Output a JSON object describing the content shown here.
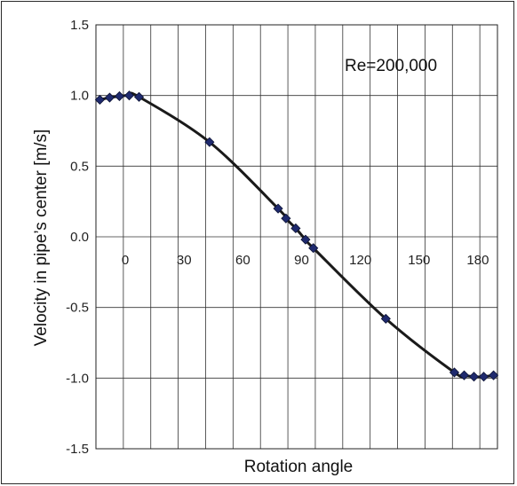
{
  "chart_data": {
    "type": "scatter",
    "title": "",
    "xlabel": "Rotation angle",
    "ylabel": "Velocity in pipe’s center [m/s]",
    "annotation": "Re=200,000",
    "xlim": [
      -15,
      190
    ],
    "ylim": [
      -1.5,
      1.5
    ],
    "xticks": [
      0,
      30,
      60,
      90,
      120,
      150,
      180
    ],
    "yticks": [
      1.5,
      1.0,
      0.5,
      0.0,
      -0.5,
      -1.0,
      -1.5
    ],
    "ytick_labels": [
      "1.5",
      "1.0",
      "0.5",
      "0.0",
      "-0.5",
      "-1.0",
      "-1.5"
    ],
    "x_gridlines": [
      -15,
      -1,
      13,
      27,
      41,
      55,
      69,
      83,
      97,
      111,
      125,
      139,
      153,
      167,
      181
    ],
    "grid": true,
    "points": [
      {
        "x": -13,
        "y": 0.97
      },
      {
        "x": -8,
        "y": 0.985
      },
      {
        "x": -3,
        "y": 0.995
      },
      {
        "x": 2,
        "y": 1.0
      },
      {
        "x": 7,
        "y": 0.99
      },
      {
        "x": 43,
        "y": 0.67
      },
      {
        "x": 78,
        "y": 0.2
      },
      {
        "x": 82,
        "y": 0.13
      },
      {
        "x": 87,
        "y": 0.06
      },
      {
        "x": 92,
        "y": -0.02
      },
      {
        "x": 96,
        "y": -0.08
      },
      {
        "x": 133,
        "y": -0.58
      },
      {
        "x": 168,
        "y": -0.96
      },
      {
        "x": 173,
        "y": -0.98
      },
      {
        "x": 178,
        "y": -0.99
      },
      {
        "x": 183,
        "y": -0.99
      },
      {
        "x": 188,
        "y": -0.98
      }
    ],
    "line_color": "#1a1a1a",
    "marker_color": "#1f2a6e"
  }
}
